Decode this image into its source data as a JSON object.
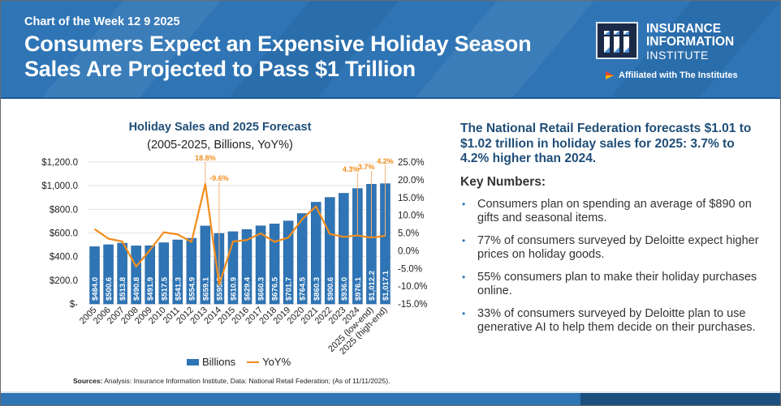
{
  "header": {
    "kicker": "Chart of the Week 12 9 2025",
    "title_line1": "Consumers Expect an Expensive Holiday Season",
    "title_line2": "Sales Are Projected to Pass $1 Trillion",
    "logo": {
      "mark": "iii",
      "line1": "INSURANCE",
      "line2": "INFORMATION",
      "line3": "INSTITUTE",
      "affiliation": "Affiliated with The Institutes"
    }
  },
  "chart": {
    "title": "Holiday Sales and 2025 Forecast",
    "subtitle": "(2005-2025, Billions, YoY%)",
    "legend_bar": "Billions",
    "legend_line": "YoY%",
    "sources_label": "Sources:",
    "sources_text": " Analysis: Insurance Information Institute, Data: National Retail Federation; (As of 11/11/2025)."
  },
  "chart_data": {
    "type": "bar",
    "title": "Holiday Sales and 2025 Forecast",
    "subtitle": "(2005-2025, Billions, YoY%)",
    "categories": [
      "2005",
      "2006",
      "2007",
      "2008",
      "2009",
      "2010",
      "2011",
      "2012",
      "2013",
      "2014",
      "2015",
      "2016",
      "2017",
      "2018",
      "2019",
      "2020",
      "2021",
      "2022",
      "2023",
      "2024",
      "2025 (low-end)",
      "2025 (high-end)"
    ],
    "series": [
      {
        "name": "Billions",
        "type": "bar",
        "axis": "left",
        "color": "#2f75b5",
        "values": [
          484.0,
          500.6,
          513.8,
          490.8,
          491.9,
          517.5,
          541.3,
          554.9,
          659.1,
          595.5,
          610.9,
          629.4,
          660.3,
          676.5,
          701.7,
          764.5,
          860.3,
          900.6,
          936.0,
          976.1,
          1012.2,
          1017.1
        ],
        "labels": [
          "$484.0",
          "$500.6",
          "$513.8",
          "$490.8",
          "$491.9",
          "$517.5",
          "$541.3",
          "$554.9",
          "$659.1",
          "$595.5",
          "$610.9",
          "$629.4",
          "$660.3",
          "$676.5",
          "$701.7",
          "$764.5",
          "$860.3",
          "$900.6",
          "$936.0",
          "$976.1",
          "$1,012.2",
          "$1,017.1"
        ]
      },
      {
        "name": "YoY%",
        "type": "line",
        "axis": "right",
        "color": "#f28c1c",
        "values": [
          6.1,
          3.4,
          2.6,
          -4.5,
          0.2,
          5.2,
          4.6,
          2.5,
          18.8,
          -9.6,
          2.6,
          3.0,
          4.9,
          2.5,
          3.7,
          8.9,
          12.5,
          4.7,
          3.9,
          4.3,
          3.7,
          4.2
        ],
        "callouts": [
          {
            "index": 8,
            "label": "18.8%"
          },
          {
            "index": 9,
            "label": "-9.6%"
          },
          {
            "index": 19,
            "label": "4.3%"
          },
          {
            "index": 20,
            "label": "3.7%"
          },
          {
            "index": 21,
            "label": "4.2%"
          }
        ]
      }
    ],
    "y_left": {
      "range": [
        0,
        1200
      ],
      "ticks": [
        "$-",
        "$200.0",
        "$400.0",
        "$600.0",
        "$800.0",
        "$1,000.0",
        "$1,200.0"
      ],
      "tick_values": [
        0,
        200,
        400,
        600,
        800,
        1000,
        1200
      ]
    },
    "y_right": {
      "range": [
        -15,
        25
      ],
      "ticks": [
        "-15.0%",
        "-10.0%",
        "-5.0%",
        "0.0%",
        "5.0%",
        "10.0%",
        "15.0%",
        "20.0%",
        "25.0%"
      ],
      "tick_values": [
        -15,
        -10,
        -5,
        0,
        5,
        10,
        15,
        20,
        25
      ]
    },
    "grid": true,
    "legend": "bottom"
  },
  "summary": {
    "headline": "The National Retail Federation forecasts $1.01 to $1.02 trillion in holiday sales for 2025: 3.7% to 4.2% higher than 2024.",
    "key_heading": "Key Numbers:",
    "bullet_glyph": "•",
    "bullets": [
      "Consumers plan on spending an average of $890 on gifts and seasonal items.",
      "77% of consumers surveyed by Deloitte expect higher prices on holiday goods.",
      "55% consumers plan to make their holiday purchases online.",
      "33% of consumers surveyed by Deloitte plan to use generative AI to help them decide on their purchases."
    ]
  }
}
